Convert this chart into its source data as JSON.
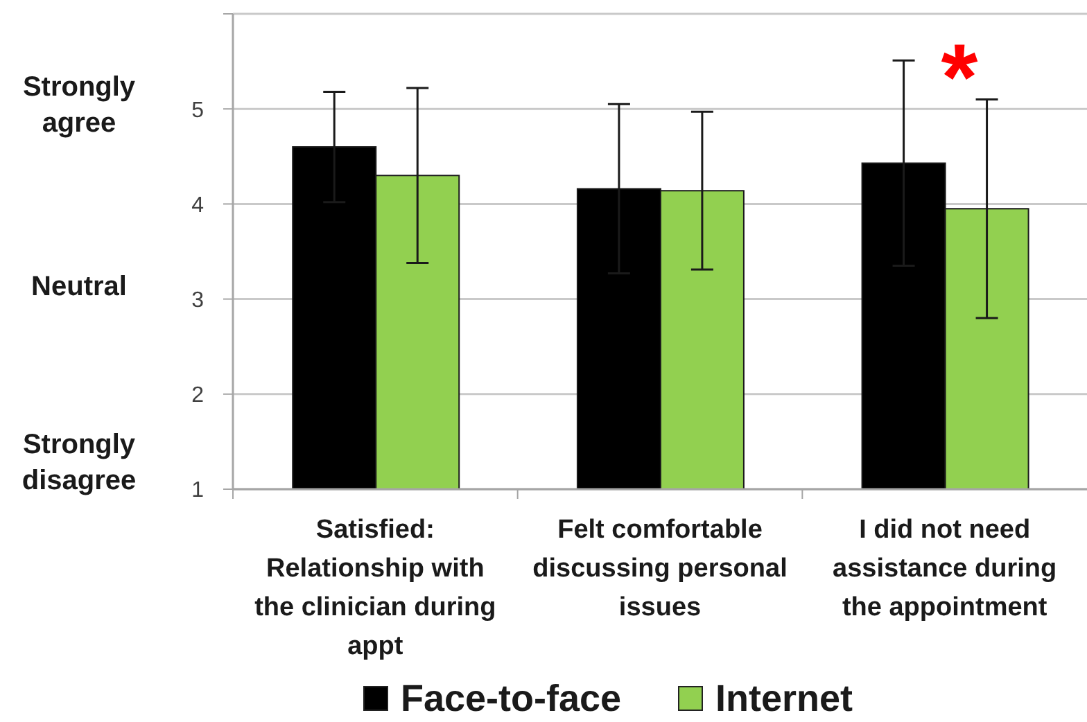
{
  "chart_data": {
    "type": "bar",
    "categories": [
      "Satisfied: Relationship with the clinician during appt",
      "Felt comfortable discussing personal issues",
      "I did not need assistance during the appointment"
    ],
    "series": [
      {
        "name": "Face-to-face",
        "color": "#000000",
        "values": [
          4.6,
          4.16,
          4.43
        ],
        "errors": [
          0.58,
          0.89,
          1.08
        ]
      },
      {
        "name": "Internet",
        "color": "#92d050",
        "values": [
          4.3,
          4.14,
          3.95
        ],
        "errors": [
          0.92,
          0.83,
          1.15
        ]
      }
    ],
    "ylim": [
      1,
      6
    ],
    "yticks": [
      1,
      2,
      3,
      4,
      5,
      {
        "value": 6,
        "label": null
      }
    ],
    "grid": "y",
    "legend": "bottom",
    "annotations": [
      "Strongly agree",
      "Neutral",
      "Strongly disagree",
      "*"
    ]
  }
}
